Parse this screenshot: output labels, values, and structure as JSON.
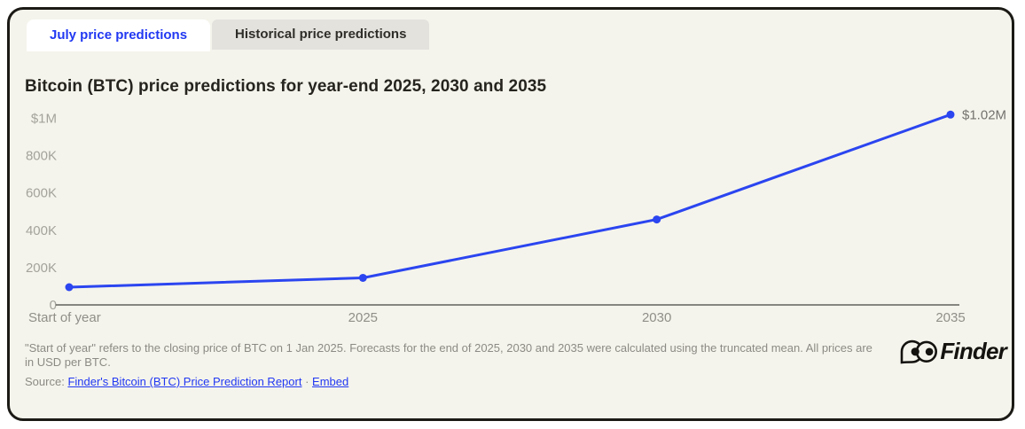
{
  "tabs": {
    "july": {
      "label": "July price predictions"
    },
    "historical": {
      "label": "Historical price predictions"
    }
  },
  "title": "Bitcoin (BTC) price predictions for year-end 2025, 2030 and 2035",
  "chart_data": {
    "type": "line",
    "title": "Bitcoin (BTC) price predictions for year-end 2025, 2030 and 2035",
    "categories": [
      "Start of year",
      "2025",
      "2030",
      "2035"
    ],
    "values": [
      95000,
      145000,
      458000,
      1020000
    ],
    "end_label": "$1.02M",
    "y_ticks": [
      {
        "label": "$1M",
        "value": 1000000
      },
      {
        "label": "800K",
        "value": 800000
      },
      {
        "label": "600K",
        "value": 600000
      },
      {
        "label": "400K",
        "value": 400000
      },
      {
        "label": "200K",
        "value": 200000
      },
      {
        "label": "0",
        "value": 0
      }
    ],
    "ylim": [
      0,
      1000000
    ],
    "grid": false,
    "legend": false,
    "line_color": "#2b45f0",
    "axis_color": "#45443f",
    "tick_label_color": "#a3a29b",
    "x_label_color": "#8f8e88",
    "end_label_color": "#73726d"
  },
  "footer": {
    "footnote": "\"Start of year\" refers to the closing price of BTC on 1 Jan 2025. Forecasts for the end of 2025, 2030 and 2035 were calculated using the truncated mean. All prices are in USD per BTC.",
    "source_prefix": "Source:",
    "source_link": "Finder's Bitcoin (BTC) Price Prediction Report",
    "separator": "·",
    "embed_link": "Embed"
  },
  "logo": {
    "text": "Finder"
  },
  "colors": {
    "accent_blue": "#2138f2",
    "background": "#f5f4ec",
    "border": "#1b1a15"
  }
}
